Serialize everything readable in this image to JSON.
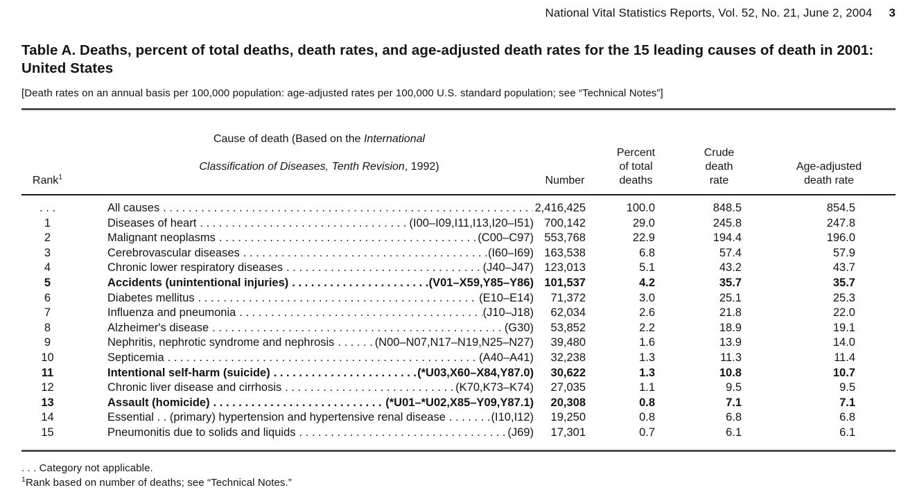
{
  "page_header": {
    "journal_line": "National Vital Statistics Reports, Vol. 52, No. 21, June 2, 2004",
    "page_number": "3"
  },
  "table_title": "Table A. Deaths, percent of total deaths, death rates, and age-adjusted death rates for the 15 leading causes of death in 2001: United States",
  "bracket_note": "[Death rates on an annual basis per 100,000 population: age-adjusted rates per 100,000 U.S. standard population; see “Technical Notes”]",
  "table": {
    "columns": {
      "rank_label": "Rank",
      "rank_superscript": "1",
      "cause_line1_regular": "Cause of death (Based on the ",
      "cause_line1_italic": "International",
      "cause_line2_italic": "Classification of Diseases, Tenth Revision",
      "cause_line2_regular": ", 1992)",
      "number": "Number",
      "percent": "Percent\nof total\ndeaths",
      "crude": "Crude\ndeath\nrate",
      "age_adjusted": "Age-adjusted\ndeath rate"
    },
    "rows": [
      {
        "rank": ". . .",
        "cause": "All causes",
        "icd": "",
        "number": "2,416,425",
        "percent": "100.0",
        "crude_rate": "848.5",
        "age_adjusted_rate": "854.5",
        "bold": false
      },
      {
        "rank": "1",
        "cause": "Diseases of heart",
        "icd": "(I00–I09,I11,I13,I20–I51)",
        "number": "700,142",
        "percent": "29.0",
        "crude_rate": "245.8",
        "age_adjusted_rate": "247.8",
        "bold": false
      },
      {
        "rank": "2",
        "cause": "Malignant neoplasms",
        "icd": "(C00–C97)",
        "number": "553,768",
        "percent": "22.9",
        "crude_rate": "194.4",
        "age_adjusted_rate": "196.0",
        "bold": false
      },
      {
        "rank": "3",
        "cause": "Cerebrovascular diseases",
        "icd": "(I60–I69)",
        "number": "163,538",
        "percent": "6.8",
        "crude_rate": "57.4",
        "age_adjusted_rate": "57.9",
        "bold": false
      },
      {
        "rank": "4",
        "cause": "Chronic lower respiratory diseases",
        "icd": "(J40–J47)",
        "number": "123,013",
        "percent": "5.1",
        "crude_rate": "43.2",
        "age_adjusted_rate": "43.7",
        "bold": false
      },
      {
        "rank": "5",
        "cause": "Accidents (unintentional injuries)",
        "icd": "(V01–X59,Y85–Y86)",
        "number": "101,537",
        "percent": "4.2",
        "crude_rate": "35.7",
        "age_adjusted_rate": "35.7",
        "bold": true
      },
      {
        "rank": "6",
        "cause": "Diabetes mellitus",
        "icd": "(E10–E14)",
        "number": "71,372",
        "percent": "3.0",
        "crude_rate": "25.1",
        "age_adjusted_rate": "25.3",
        "bold": false
      },
      {
        "rank": "7",
        "cause": "Influenza and pneumonia",
        "icd": "(J10–J18)",
        "number": "62,034",
        "percent": "2.6",
        "crude_rate": "21.8",
        "age_adjusted_rate": "22.0",
        "bold": false
      },
      {
        "rank": "8",
        "cause": "Alzheimer's disease",
        "icd": "(G30)",
        "number": "53,852",
        "percent": "2.2",
        "crude_rate": "18.9",
        "age_adjusted_rate": "19.1",
        "bold": false
      },
      {
        "rank": "9",
        "cause": "Nephritis, nephrotic syndrome and nephrosis",
        "icd": "(N00–N07,N17–N19,N25–N27)",
        "number": "39,480",
        "percent": "1.6",
        "crude_rate": "13.9",
        "age_adjusted_rate": "14.0",
        "bold": false
      },
      {
        "rank": "10",
        "cause": "Septicemia",
        "icd": "(A40–A41)",
        "number": "32,238",
        "percent": "1.3",
        "crude_rate": "11.3",
        "age_adjusted_rate": "11.4",
        "bold": false
      },
      {
        "rank": "11",
        "cause": "Intentional self-harm (suicide)",
        "icd": "(*U03,X60–X84,Y87.0)",
        "number": "30,622",
        "percent": "1.3",
        "crude_rate": "10.8",
        "age_adjusted_rate": "10.7",
        "bold": true
      },
      {
        "rank": "12",
        "cause": "Chronic liver disease and cirrhosis",
        "icd": "(K70,K73–K74)",
        "number": "27,035",
        "percent": "1.1",
        "crude_rate": "9.5",
        "age_adjusted_rate": "9.5",
        "bold": false
      },
      {
        "rank": "13",
        "cause": "Assault (homicide)",
        "icd": "(*U01–*U02,X85–Y09,Y87.1)",
        "number": "20,308",
        "percent": "0.8",
        "crude_rate": "7.1",
        "age_adjusted_rate": "7.1",
        "bold": true
      },
      {
        "rank": "14",
        "cause": "Essential . . (primary) hypertension and hypertensive renal disease",
        "icd": "(I10,I12)",
        "number": "19,250",
        "percent": "0.8",
        "crude_rate": "6.8",
        "age_adjusted_rate": "6.8",
        "bold": false
      },
      {
        "rank": "15",
        "cause": "Pneumonitis due to solids and liquids",
        "icd": "(J69)",
        "number": "17,301",
        "percent": "0.7",
        "crude_rate": "6.1",
        "age_adjusted_rate": "6.1",
        "bold": false
      }
    ]
  },
  "footnotes": {
    "category": ". . . Category not applicable.",
    "rank_sup": "1",
    "rank_text": "Rank based on number of deaths; see “Technical Notes.”"
  }
}
